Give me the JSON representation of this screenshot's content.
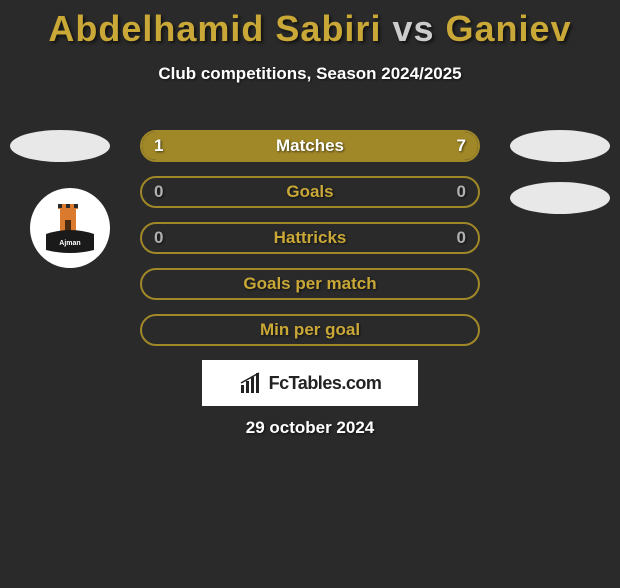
{
  "background_color": "#2a2a2a",
  "title": {
    "player1": "Abdelhamid Sabiri",
    "vs": "vs",
    "player2": "Ganiev",
    "color_players": "#c9a837",
    "color_vs": "#cccccc",
    "fontsize": 36
  },
  "subtitle": {
    "text": "Club competitions, Season 2024/2025",
    "color": "#ffffff",
    "fontsize": 17
  },
  "side_ellipses": {
    "color": "#e8e8e8",
    "width": 100,
    "height": 32
  },
  "team_badge": {
    "bg": "#ffffff",
    "tower_color": "#d97a2e",
    "text_color": "#1a1a1a"
  },
  "rows": [
    {
      "label": "Matches",
      "left_val": "1",
      "right_val": "7",
      "border_color": "#a08828",
      "left_fill_color": "#a08828",
      "right_fill_color": "#a08828",
      "left_fill_pct": 12.5,
      "right_fill_pct": 87.5,
      "label_color": "#ffffff",
      "val_color": "#ffffff"
    },
    {
      "label": "Goals",
      "left_val": "0",
      "right_val": "0",
      "border_color": "#a08828",
      "left_fill_color": "#a08828",
      "right_fill_color": "#a08828",
      "left_fill_pct": 0,
      "right_fill_pct": 0,
      "label_color": "#c9a837",
      "val_color": "#b0b0b0"
    },
    {
      "label": "Hattricks",
      "left_val": "0",
      "right_val": "0",
      "border_color": "#a08828",
      "left_fill_color": "#a08828",
      "right_fill_color": "#a08828",
      "left_fill_pct": 0,
      "right_fill_pct": 0,
      "label_color": "#c9a837",
      "val_color": "#b0b0b0"
    },
    {
      "label": "Goals per match",
      "left_val": "",
      "right_val": "",
      "border_color": "#a08828",
      "left_fill_color": "#a08828",
      "right_fill_color": "#a08828",
      "left_fill_pct": 0,
      "right_fill_pct": 0,
      "label_color": "#c9a837",
      "val_color": "#b0b0b0"
    },
    {
      "label": "Min per goal",
      "left_val": "",
      "right_val": "",
      "border_color": "#a08828",
      "left_fill_color": "#a08828",
      "right_fill_color": "#a08828",
      "left_fill_pct": 0,
      "right_fill_pct": 0,
      "label_color": "#c9a837",
      "val_color": "#b0b0b0"
    }
  ],
  "logo": {
    "text": "FcTables.com",
    "bg": "#ffffff",
    "text_color": "#222222",
    "icon_color": "#222222"
  },
  "date": {
    "text": "29 october 2024",
    "color": "#ffffff",
    "fontsize": 17
  }
}
